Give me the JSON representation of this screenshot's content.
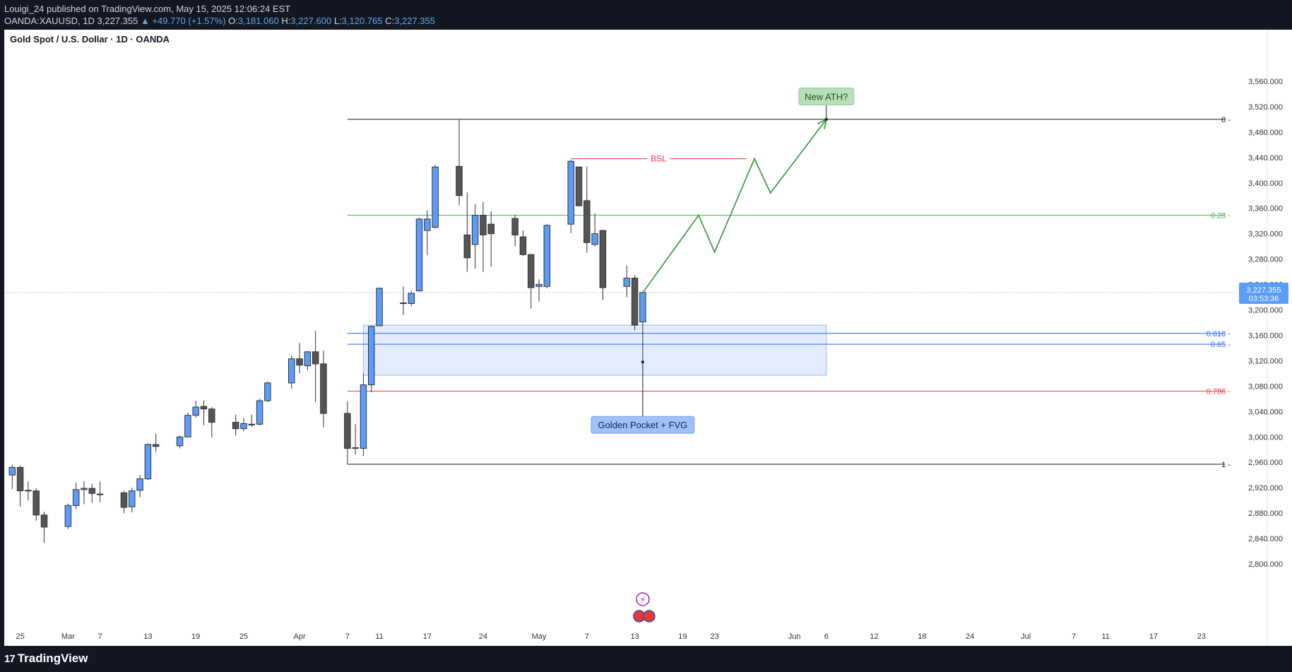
{
  "header": {
    "publisher": "Louigi_24 published on TradingView.com, May 15, 2025 12:06:24 EST",
    "symbol": "OANDA:XAUUSD, 1D",
    "last": "3,227.355",
    "change": "▲ +49.770 (+1.57%)",
    "o_label": "O:",
    "o_value": "3,181.060",
    "h_label": "H:",
    "h_value": "3,227.600",
    "l_label": "L:",
    "l_value": "3,120.765",
    "c_label": "C:",
    "c_value": "3,227.355"
  },
  "footer": {
    "logo_text": "TradingView",
    "logo_mark": "17"
  },
  "colors": {
    "up": "#5b9cf6",
    "down": "#555555",
    "wick": "#333333",
    "projection": "#43a047",
    "fib_blue": "#2962ff",
    "fib_red": "#f23645",
    "fib_green": "#4caf50",
    "zone_fill": "#e3ecfd",
    "zone_border": "#9bb7f3",
    "grid_text": "#333333"
  },
  "chart_data": {
    "type": "candlestick",
    "title": "Gold Spot / U.S. Dollar · 1D · OANDA",
    "y_range": [
      2760,
      3580
    ],
    "y_ticks": [
      3560,
      3520,
      3480,
      3440,
      3400,
      3360,
      3320,
      3280,
      3240,
      3200,
      3160,
      3120,
      3080,
      3040,
      3000,
      2960,
      2920,
      2880,
      2840,
      2800
    ],
    "y_tick_labels": [
      "3,560.000",
      "3,520.000",
      "3,480.000",
      "3,440.000",
      "3,400.000",
      "3,360.000",
      "3,320.000",
      "3,280.000",
      "3,240.000",
      "3,200.000",
      "3,160.000",
      "3,120.000",
      "3,080.000",
      "3,040.000",
      "3,000.000",
      "2,960.000",
      "2,920.000",
      "2,880.000",
      "2,840.000",
      "2,800.000"
    ],
    "x_ticks": [
      {
        "label": "25",
        "date": "2025-02-25"
      },
      {
        "label": "Mar",
        "date": "2025-03-03"
      },
      {
        "label": "7",
        "date": "2025-03-07"
      },
      {
        "label": "13",
        "date": "2025-03-13"
      },
      {
        "label": "19",
        "date": "2025-03-19"
      },
      {
        "label": "25",
        "date": "2025-03-25"
      },
      {
        "label": "Apr",
        "date": "2025-04-01"
      },
      {
        "label": "7",
        "date": "2025-04-07"
      },
      {
        "label": "11",
        "date": "2025-04-11"
      },
      {
        "label": "17",
        "date": "2025-04-17"
      },
      {
        "label": "24",
        "date": "2025-04-24"
      },
      {
        "label": "May",
        "date": "2025-05-01"
      },
      {
        "label": "7",
        "date": "2025-05-07"
      },
      {
        "label": "13",
        "date": "2025-05-13"
      },
      {
        "label": "19",
        "date": "2025-05-19"
      },
      {
        "label": "23",
        "date": "2025-05-23"
      },
      {
        "label": "Jun",
        "date": "2025-06-02"
      },
      {
        "label": "6",
        "date": "2025-06-06"
      },
      {
        "label": "12",
        "date": "2025-06-12"
      },
      {
        "label": "18",
        "date": "2025-06-18"
      },
      {
        "label": "24",
        "date": "2025-06-24"
      },
      {
        "label": "Jul",
        "date": "2025-07-01"
      },
      {
        "label": "7",
        "date": "2025-07-07"
      },
      {
        "label": "11",
        "date": "2025-07-11"
      },
      {
        "label": "17",
        "date": "2025-07-17"
      },
      {
        "label": "23",
        "date": "2025-07-23"
      }
    ],
    "candles": [
      {
        "date": "2025-02-24",
        "o": 2940,
        "h": 2956,
        "l": 2918,
        "c": 2952
      },
      {
        "date": "2025-02-25",
        "o": 2952,
        "h": 2955,
        "l": 2890,
        "c": 2915
      },
      {
        "date": "2025-02-26",
        "o": 2915,
        "h": 2930,
        "l": 2900,
        "c": 2916
      },
      {
        "date": "2025-02-27",
        "o": 2915,
        "h": 2919,
        "l": 2868,
        "c": 2877
      },
      {
        "date": "2025-02-28",
        "o": 2877,
        "h": 2882,
        "l": 2833,
        "c": 2858
      },
      {
        "date": "2025-03-03",
        "o": 2859,
        "h": 2895,
        "l": 2855,
        "c": 2892
      },
      {
        "date": "2025-03-04",
        "o": 2892,
        "h": 2928,
        "l": 2886,
        "c": 2917
      },
      {
        "date": "2025-03-05",
        "o": 2917,
        "h": 2930,
        "l": 2894,
        "c": 2919
      },
      {
        "date": "2025-03-06",
        "o": 2919,
        "h": 2926,
        "l": 2896,
        "c": 2911
      },
      {
        "date": "2025-03-07",
        "o": 2910,
        "h": 2930,
        "l": 2897,
        "c": 2910
      },
      {
        "date": "2025-03-10",
        "o": 2912,
        "h": 2915,
        "l": 2880,
        "c": 2889
      },
      {
        "date": "2025-03-11",
        "o": 2890,
        "h": 2920,
        "l": 2881,
        "c": 2915
      },
      {
        "date": "2025-03-12",
        "o": 2916,
        "h": 2940,
        "l": 2905,
        "c": 2934
      },
      {
        "date": "2025-03-13",
        "o": 2934,
        "h": 2990,
        "l": 2932,
        "c": 2988
      },
      {
        "date": "2025-03-14",
        "o": 2988,
        "h": 3005,
        "l": 2976,
        "c": 2985
      },
      {
        "date": "2025-03-17",
        "o": 2986,
        "h": 3002,
        "l": 2982,
        "c": 3000
      },
      {
        "date": "2025-03-18",
        "o": 3000,
        "h": 3038,
        "l": 2999,
        "c": 3034
      },
      {
        "date": "2025-03-19",
        "o": 3034,
        "h": 3057,
        "l": 3030,
        "c": 3047
      },
      {
        "date": "2025-03-20",
        "o": 3048,
        "h": 3057,
        "l": 3018,
        "c": 3044
      },
      {
        "date": "2025-03-21",
        "o": 3044,
        "h": 3047,
        "l": 2999,
        "c": 3023
      },
      {
        "date": "2025-03-24",
        "o": 3023,
        "h": 3035,
        "l": 3002,
        "c": 3013
      },
      {
        "date": "2025-03-25",
        "o": 3013,
        "h": 3030,
        "l": 3009,
        "c": 3021
      },
      {
        "date": "2025-03-26",
        "o": 3020,
        "h": 3035,
        "l": 3016,
        "c": 3019
      },
      {
        "date": "2025-03-27",
        "o": 3020,
        "h": 3060,
        "l": 3018,
        "c": 3057
      },
      {
        "date": "2025-03-28",
        "o": 3057,
        "h": 3087,
        "l": 3055,
        "c": 3085
      },
      {
        "date": "2025-03-31",
        "o": 3085,
        "h": 3128,
        "l": 3076,
        "c": 3123
      },
      {
        "date": "2025-04-01",
        "o": 3123,
        "h": 3148,
        "l": 3100,
        "c": 3113
      },
      {
        "date": "2025-04-02",
        "o": 3112,
        "h": 3135,
        "l": 3105,
        "c": 3134
      },
      {
        "date": "2025-04-03",
        "o": 3134,
        "h": 3167,
        "l": 3055,
        "c": 3115
      },
      {
        "date": "2025-04-04",
        "o": 3115,
        "h": 3136,
        "l": 3015,
        "c": 3037
      },
      {
        "date": "2025-04-07",
        "o": 3037,
        "h": 3056,
        "l": 2957,
        "c": 2982
      },
      {
        "date": "2025-04-08",
        "o": 2983,
        "h": 3020,
        "l": 2972,
        "c": 2982
      },
      {
        "date": "2025-04-09",
        "o": 2982,
        "h": 3100,
        "l": 2970,
        "c": 3082
      },
      {
        "date": "2025-04-10",
        "o": 3082,
        "h": 3175,
        "l": 3070,
        "c": 3174
      },
      {
        "date": "2025-04-11",
        "o": 3175,
        "h": 3235,
        "l": 3178,
        "c": 3234
      },
      {
        "date": "2025-04-14",
        "o": 3210,
        "h": 3237,
        "l": 3192,
        "c": 3211
      },
      {
        "date": "2025-04-15",
        "o": 3210,
        "h": 3230,
        "l": 3206,
        "c": 3226
      },
      {
        "date": "2025-04-16",
        "o": 3230,
        "h": 3345,
        "l": 3229,
        "c": 3343
      },
      {
        "date": "2025-04-17",
        "o": 3325,
        "h": 3357,
        "l": 3286,
        "c": 3343
      },
      {
        "date": "2025-04-18",
        "o": 3330,
        "h": 3428,
        "l": 3328,
        "c": 3425
      },
      {
        "date": "2025-04-21",
        "o": 3426,
        "h": 3500,
        "l": 3365,
        "c": 3380
      },
      {
        "date": "2025-04-22",
        "o": 3318,
        "h": 3385,
        "l": 3260,
        "c": 3282
      },
      {
        "date": "2025-04-23",
        "o": 3303,
        "h": 3367,
        "l": 3265,
        "c": 3349
      },
      {
        "date": "2025-04-24",
        "o": 3349,
        "h": 3370,
        "l": 3260,
        "c": 3318
      },
      {
        "date": "2025-04-25",
        "o": 3335,
        "h": 3355,
        "l": 3268,
        "c": 3320
      },
      {
        "date": "2025-04-28",
        "o": 3344,
        "h": 3350,
        "l": 3300,
        "c": 3318
      },
      {
        "date": "2025-04-29",
        "o": 3315,
        "h": 3325,
        "l": 3285,
        "c": 3287
      },
      {
        "date": "2025-04-30",
        "o": 3287,
        "h": 3288,
        "l": 3202,
        "c": 3235
      },
      {
        "date": "2025-05-01",
        "o": 3237,
        "h": 3248,
        "l": 3213,
        "c": 3240
      },
      {
        "date": "2025-05-02",
        "o": 3237,
        "h": 3335,
        "l": 3234,
        "c": 3333
      },
      {
        "date": "2025-05-05",
        "o": 3335,
        "h": 3436,
        "l": 3321,
        "c": 3434
      },
      {
        "date": "2025-05-06",
        "o": 3425,
        "h": 3425,
        "l": 3363,
        "c": 3364
      },
      {
        "date": "2025-05-07",
        "o": 3372,
        "h": 3426,
        "l": 3290,
        "c": 3306
      },
      {
        "date": "2025-05-08",
        "o": 3303,
        "h": 3352,
        "l": 3300,
        "c": 3320
      },
      {
        "date": "2025-05-09",
        "o": 3325,
        "h": 3326,
        "l": 3215,
        "c": 3235
      },
      {
        "date": "2025-05-12",
        "o": 3237,
        "h": 3270,
        "l": 3220,
        "c": 3250
      },
      {
        "date": "2025-05-13",
        "o": 3250,
        "h": 3255,
        "l": 3168,
        "c": 3176
      },
      {
        "date": "2025-05-14",
        "o": 3181,
        "h": 3227.6,
        "l": 3120.765,
        "c": 3227.355
      }
    ],
    "fib_levels": [
      {
        "label": "0",
        "price": 3500
      },
      {
        "label": "0.28",
        "price": 3349
      },
      {
        "label": "0.618",
        "price": 3163
      },
      {
        "label": "0.65",
        "price": 3146
      },
      {
        "label": "0.786",
        "price": 3072
      },
      {
        "label": "1",
        "price": 2957
      }
    ],
    "fib_start_date": "2025-04-07",
    "zone": {
      "from_date": "2025-04-09",
      "to_date": "2025-06-06",
      "top": 3176,
      "bottom": 3097
    },
    "bsl": {
      "label": "BSL",
      "price": 3438,
      "from_date": "2025-05-05",
      "to_date": "2025-05-27"
    },
    "projection": [
      {
        "date": "2025-05-14",
        "price": 3227
      },
      {
        "date": "2025-05-21",
        "price": 3349
      },
      {
        "date": "2025-05-23",
        "price": 3291
      },
      {
        "date": "2025-05-28",
        "price": 3438
      },
      {
        "date": "2025-05-30",
        "price": 3384
      },
      {
        "date": "2025-06-06",
        "price": 3500
      }
    ],
    "annotations": [
      {
        "label": "New ATH?",
        "date": "2025-06-06",
        "price": 3536
      },
      {
        "label": "Golden Pocket + FVG",
        "date": "2025-05-14",
        "price": 3019
      }
    ],
    "annotation_anchors": [
      {
        "name": "new-ath",
        "date": "2025-06-06",
        "price": 3500
      },
      {
        "name": "golden-pocket",
        "date": "2025-05-14",
        "price": 3118
      }
    ],
    "last_price": {
      "label": "3,227.355",
      "countdown": "03:53:36",
      "price": 3227.355
    },
    "event_icons_date": "2025-05-14",
    "x_start": "2025-02-23",
    "x_end": "2025-07-27"
  }
}
